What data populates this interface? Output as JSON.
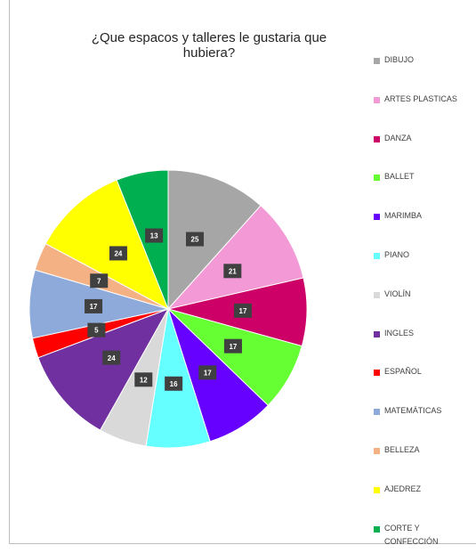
{
  "chart_data": {
    "type": "pie",
    "title": "¿Que espacos y talleres le gustaria que hubiera?",
    "categories": [
      "DIBUJO",
      "ARTES PLASTICAS",
      "DANZA",
      "BALLET",
      "MARIMBA",
      "PIANO",
      "VIOLÍN",
      "INGLES",
      "ESPAÑOL",
      "MATEMÁTICAS",
      "BELLEZA",
      "AJEDREZ",
      "CORTE Y CONFECCIÓN"
    ],
    "values": [
      25,
      21,
      17,
      17,
      17,
      16,
      12,
      24,
      5,
      17,
      7,
      24,
      13
    ],
    "colors": [
      "#a6a6a6",
      "#f399d6",
      "#cc0066",
      "#66ff33",
      "#6600ff",
      "#66ffff",
      "#d9d9d9",
      "#7030a0",
      "#ff0000",
      "#8eaadb",
      "#f4b183",
      "#ffff00",
      "#00b050"
    ],
    "legend": "right"
  }
}
